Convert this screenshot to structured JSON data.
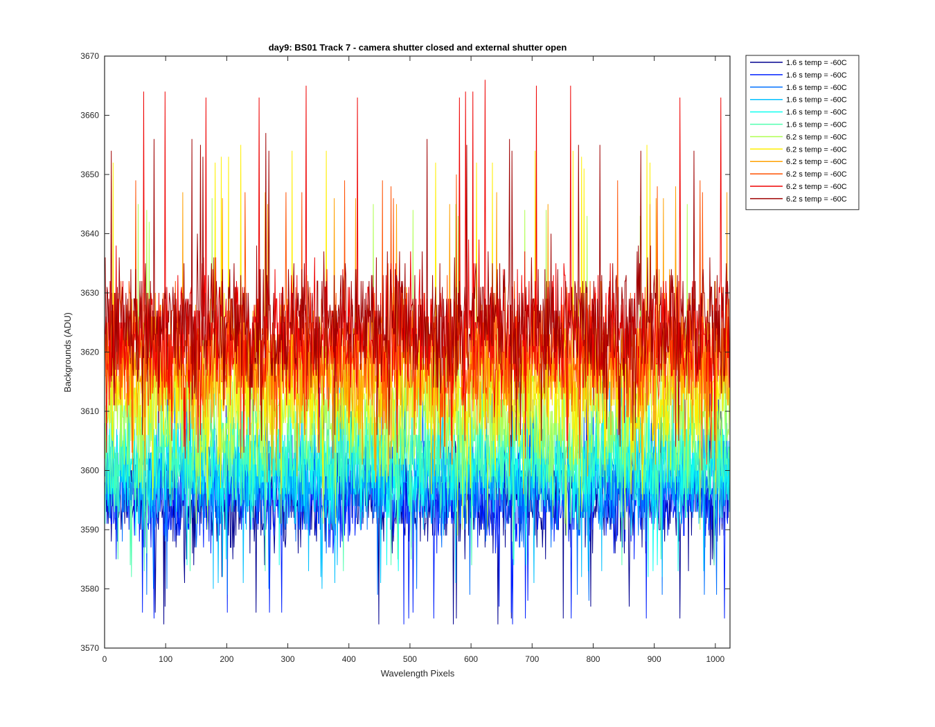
{
  "chart_data": {
    "type": "line",
    "title": "day9: BS01  Track 7 - camera shutter closed and external shutter open",
    "xlabel": "Wavelength Pixels",
    "ylabel": "Backgrounds (ADU)",
    "xlim": [
      0,
      1024
    ],
    "ylim": [
      3570,
      3670
    ],
    "xticks": [
      0,
      100,
      200,
      300,
      400,
      500,
      600,
      700,
      800,
      900,
      1000
    ],
    "yticks": [
      3570,
      3580,
      3590,
      3600,
      3610,
      3620,
      3630,
      3640,
      3650,
      3660,
      3670
    ],
    "grid": false,
    "legend_position": "outside-top-right",
    "series": [
      {
        "name": "1.6 s temp = -60C",
        "color": "#00008F",
        "mean": 3595,
        "spread": 4.5,
        "spike_min": 3573,
        "spike_max": 3614
      },
      {
        "name": "1.6 s temp = -60C",
        "color": "#0020FF",
        "mean": 3596,
        "spread": 4.5,
        "spike_min": 3574,
        "spike_max": 3615
      },
      {
        "name": "1.6 s temp = -60C",
        "color": "#0070FF",
        "mean": 3598,
        "spread": 4.5,
        "spike_min": 3577,
        "spike_max": 3616
      },
      {
        "name": "1.6 s temp = -60C",
        "color": "#00C0FF",
        "mean": 3600,
        "spread": 4.5,
        "spike_min": 3580,
        "spike_max": 3617
      },
      {
        "name": "1.6 s temp = -60C",
        "color": "#10FFEF",
        "mean": 3601,
        "spread": 4.5,
        "spike_min": 3582,
        "spike_max": 3618
      },
      {
        "name": "1.6 s temp = -60C",
        "color": "#50FFAF",
        "mean": 3603,
        "spread": 4.5,
        "spike_min": 3582,
        "spike_max": 3619
      },
      {
        "name": "6.2 s temp = -60C",
        "color": "#AFFF50",
        "mean": 3610,
        "spread": 5.5,
        "spike_min": 3589,
        "spike_max": 3646
      },
      {
        "name": "6.2 s temp = -60C",
        "color": "#FFEF00",
        "mean": 3614,
        "spread": 5.5,
        "spike_min": 3594,
        "spike_max": 3655
      },
      {
        "name": "6.2 s temp = -60C",
        "color": "#FFA000",
        "mean": 3618,
        "spread": 5.5,
        "spike_min": 3598,
        "spike_max": 3648
      },
      {
        "name": "6.2 s temp = -60C",
        "color": "#FF5000",
        "mean": 3620,
        "spread": 5.5,
        "spike_min": 3600,
        "spike_max": 3650
      },
      {
        "name": "6.2 s temp = -60C",
        "color": "#EF0000",
        "mean": 3623,
        "spread": 5.5,
        "spike_min": 3602,
        "spike_max": 3666
      },
      {
        "name": "6.2 s temp = -60C",
        "color": "#9F0000",
        "mean": 3625,
        "spread": 5.5,
        "spike_min": 3604,
        "spike_max": 3657
      }
    ]
  }
}
